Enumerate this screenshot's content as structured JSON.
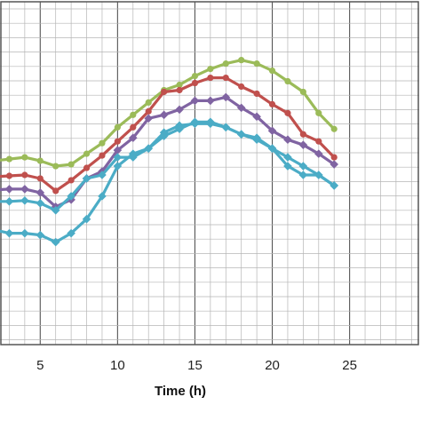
{
  "chart_data": {
    "type": "line",
    "title": "",
    "xlabel": "Time (h)",
    "ylabel": "",
    "xlim": [
      2.4,
      29.5
    ],
    "x_ticks": [
      "5",
      "10",
      "15",
      "20",
      "25"
    ],
    "grid": true,
    "legend": "none",
    "x": [
      1,
      2,
      3,
      4,
      5,
      6,
      7,
      8,
      9,
      10,
      11,
      12,
      13,
      14,
      15,
      16,
      17,
      18,
      19,
      20,
      21,
      22,
      23,
      24
    ],
    "series": [
      {
        "color": "#9bbb59",
        "marker": "circle",
        "values": [
          182,
          180,
          178,
          176,
          180,
          186,
          184,
          172,
          160,
          142,
          128,
          114,
          100,
          94,
          84,
          76,
          70,
          66,
          70,
          78,
          90,
          102,
          126,
          144
        ]
      },
      {
        "color": "#c0504d",
        "marker": "circle",
        "values": [
          200,
          198,
          197,
          196,
          200,
          214,
          202,
          188,
          174,
          158,
          142,
          124,
          102,
          100,
          92,
          86,
          86,
          96,
          104,
          116,
          126,
          150,
          158,
          176
        ]
      },
      {
        "color": "#8064a2",
        "marker": "diamond",
        "values": [
          214,
          213,
          212,
          212,
          216,
          232,
          224,
          200,
          192,
          168,
          154,
          132,
          128,
          122,
          112,
          112,
          108,
          120,
          130,
          146,
          156,
          162,
          172,
          184
        ]
      },
      {
        "color": "#4bacc6",
        "marker": "diamond",
        "values": [
          228,
          226,
          226,
          225,
          228,
          236,
          220,
          200,
          196,
          176,
          176,
          166,
          148,
          140,
          138,
          138,
          142,
          150,
          154,
          166,
          176,
          186,
          196,
          208
        ]
      },
      {
        "color": "#4bacc6",
        "marker": "diamond",
        "values": [
          258,
          258,
          262,
          262,
          264,
          272,
          262,
          246,
          220,
          186,
          172,
          166,
          152,
          144,
          136,
          136,
          142,
          150,
          156,
          166,
          186,
          196,
          196,
          208
        ]
      }
    ]
  }
}
